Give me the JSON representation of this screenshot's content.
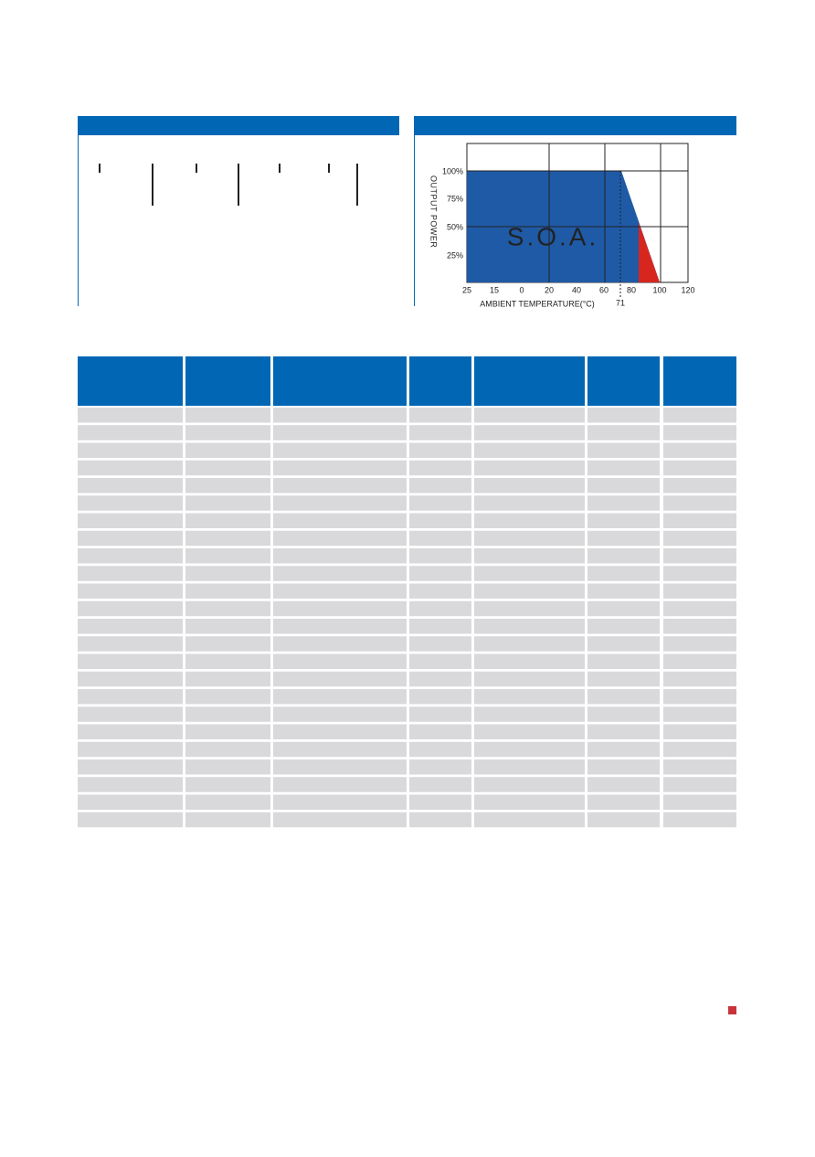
{
  "derating_chart": {
    "y_axis_label": "OUTPUT POWER",
    "x_axis_label": "AMBIENT TEMPERATURE(°C)",
    "y_tick_labels": [
      "100%",
      "75%",
      "50%",
      "25%"
    ],
    "x_tick_labels": [
      "25",
      "15",
      "0",
      "20",
      "40",
      "60",
      "80",
      "100",
      "120"
    ],
    "area_label": "S.O.A.",
    "marker_label": "71"
  }
}
